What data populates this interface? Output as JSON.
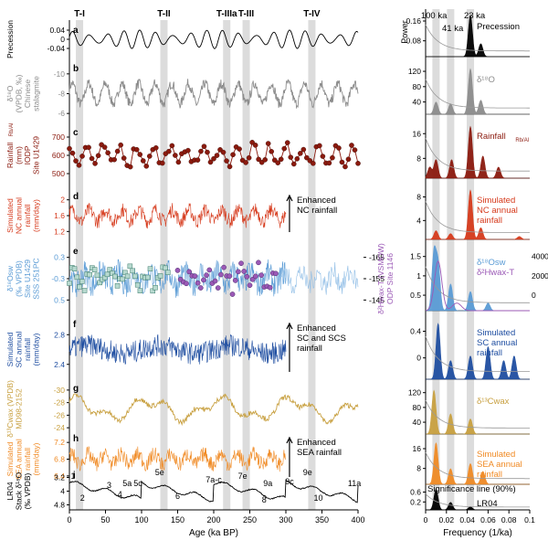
{
  "chart_data": {
    "type": "line",
    "left_figure": {
      "xlabel": "Age (ka BP)",
      "xlim": [
        0,
        400
      ],
      "xticks": [
        "0",
        "50",
        "100",
        "150",
        "200",
        "250",
        "300",
        "350",
        "400"
      ],
      "terminations": [
        {
          "label": "T-I",
          "age": 14
        },
        {
          "label": "T-II",
          "age": 131
        },
        {
          "label": "T-IIIa",
          "age": 218
        },
        {
          "label": "T-III",
          "age": 245
        },
        {
          "label": "T-IV",
          "age": 336
        }
      ],
      "panels": [
        {
          "letter": "a",
          "ylabel": [
            "Precession"
          ],
          "color": "#000000",
          "yticks": [
            "0.04",
            "0",
            "-0.04"
          ],
          "series": "precession"
        },
        {
          "letter": "b",
          "ylabel": [
            "δ¹⁸O",
            "(VPDB, ‰)",
            "Chinese",
            "stalagmite"
          ],
          "color": "#8c8c8c",
          "yticks": [
            "-10",
            "-8",
            "-6"
          ],
          "series": "stalagmite"
        },
        {
          "letter": "c",
          "ylabel": [
            "Rainfall",
            "(mm)",
            "IODP",
            "Site U1429"
          ],
          "ylabel_sub": "Rb/Al",
          "color": "#8b1a0e",
          "yticks": [
            "700",
            "600",
            "500"
          ],
          "series": "rainfall_ka",
          "markers": true
        },
        {
          "letter": "d",
          "ylabel": [
            "Simulated",
            "NC annual",
            "rainfall",
            "(mm/day)"
          ],
          "color": "#d63a1c",
          "yticks": [
            "2",
            "1.6",
            "1.2"
          ],
          "annotation": [
            "Enhanced",
            "NC rainfall"
          ],
          "series": "nc_rainfall"
        },
        {
          "letter": "e",
          "ylabel": [
            "δ¹⁸Osw",
            "(‰ VPDB)",
            "Site U1429",
            "SSS 251PC"
          ],
          "color": "#5a9bd5",
          "yticks": [
            "0.3",
            "-0.3",
            "0.5"
          ],
          "right_yticks": [
            "-165",
            "-155",
            "-145"
          ],
          "right_ylabel": [
            "δ²Hwax-T (VSMOW)",
            "ODP Site 1146"
          ],
          "right_color": "#9b59b6",
          "series": "d18osw"
        },
        {
          "letter": "f",
          "ylabel": [
            "Simulated",
            "SC annual",
            "rainfall",
            "(mm/day)"
          ],
          "color": "#1f4ea1",
          "yticks": [
            "2.8",
            "2.4"
          ],
          "annotation": [
            "Enhanced",
            "SC and SCS",
            "rainfall"
          ],
          "series": "sc_rainfall"
        },
        {
          "letter": "g",
          "ylabel": [
            "δ¹³Cwax (VPDB)",
            "MD98-2152"
          ],
          "color": "#c8a040",
          "yticks": [
            "-30",
            "-28",
            "-26",
            "-24"
          ],
          "series": "d13cwax"
        },
        {
          "letter": "h",
          "ylabel": [
            "Simulated",
            "SEA annual",
            "rainfall",
            "(mm/day)"
          ],
          "color": "#f08a24",
          "yticks": [
            "7.2",
            "6.8",
            "6.4"
          ],
          "annotation": [
            "Enhanced",
            "SEA rainfall"
          ],
          "series": "sea_rainfall"
        },
        {
          "letter": "i",
          "ylabel": [
            "LR04",
            "Stack δ¹⁸O",
            "(‰ VPDB)"
          ],
          "color": "#000000",
          "yticks": [
            "3.2",
            "4",
            "4.8"
          ],
          "series": "lr04"
        }
      ],
      "lr04_stages": [
        "1",
        "2",
        "3",
        "4",
        "5a",
        "5c",
        "5e",
        "6",
        "7a-c",
        "7e",
        "8",
        "9a",
        "9c",
        "9e",
        "10",
        "11a"
      ]
    },
    "right_figure": {
      "xlabel": "Frequency (1/ka)",
      "xlim": [
        0,
        0.1
      ],
      "xticks": [
        "0",
        "0.02",
        "0.04",
        "0.06",
        "0.08",
        "0.1"
      ],
      "ylabel_top": "Power",
      "period_labels": [
        "100 ka",
        "41 ka",
        "23 ka"
      ],
      "significance_label": "Significance line (90%)",
      "panels": [
        {
          "name": "Precession",
          "color": "#000000",
          "yticks": [
            "0.16",
            "0.08"
          ],
          "peaks": [
            [
              0.043,
              0.16
            ],
            [
              0.053,
              0.05
            ]
          ]
        },
        {
          "name": "δ¹⁸O",
          "color": "#8c8c8c",
          "yticks": [
            "120",
            "80",
            "40"
          ],
          "peaks": [
            [
              0.01,
              35
            ],
            [
              0.024,
              30
            ],
            [
              0.043,
              130
            ],
            [
              0.053,
              40
            ]
          ]
        },
        {
          "name": "Rainfall",
          "name_sub": "Rb/Al",
          "color": "#8b1a0e",
          "yticks": [
            "16",
            "8"
          ],
          "peaks": [
            [
              0.004,
              3
            ],
            [
              0.01,
              5
            ],
            [
              0.025,
              5
            ],
            [
              0.043,
              14
            ],
            [
              0.055,
              6
            ],
            [
              0.07,
              3
            ]
          ]
        },
        {
          "name": "Simulated NC annual rainfall",
          "color": "#d63a1c",
          "yticks": [
            "8",
            "4"
          ],
          "peaks": [
            [
              0.01,
              1.5
            ],
            [
              0.024,
              1.0
            ],
            [
              0.043,
              8.5
            ],
            [
              0.053,
              2.0
            ],
            [
              0.09,
              0.5
            ]
          ]
        },
        {
          "name": "δ¹⁸Osw",
          "name2": "δ²Hwax-T",
          "color": "#5a9bd5",
          "color2": "#9b59b6",
          "yticks": [
            "1.5",
            "1",
            "0.5"
          ],
          "right_yticks": [
            "4000",
            "2000",
            "0"
          ],
          "peaks": [
            [
              0.008,
              1.5
            ],
            [
              0.012,
              1.2
            ],
            [
              0.024,
              0.7
            ],
            [
              0.043,
              0.5
            ],
            [
              0.06,
              0.2
            ]
          ]
        },
        {
          "name": "Simulated SC annual rainfall",
          "color": "#1f4ea1",
          "yticks": [
            "0.4",
            "0"
          ],
          "peaks": [
            [
              0.012,
              0.6
            ],
            [
              0.024,
              0.2
            ],
            [
              0.043,
              0.25
            ],
            [
              0.06,
              0.35
            ],
            [
              0.075,
              0.2
            ],
            [
              0.085,
              0.25
            ]
          ]
        },
        {
          "name": "δ¹³Cwax",
          "color": "#c8a040",
          "yticks": [
            "120",
            "80",
            "40"
          ],
          "peaks": [
            [
              0.008,
              130
            ],
            [
              0.024,
              60
            ],
            [
              0.043,
              45
            ]
          ]
        },
        {
          "name": "Simulated SEA annual rainfall",
          "color": "#f08a24",
          "yticks": [
            "16",
            "8"
          ],
          "peaks": [
            [
              0.01,
              16
            ],
            [
              0.024,
              6
            ],
            [
              0.043,
              8
            ],
            [
              0.055,
              5
            ]
          ]
        },
        {
          "name": "LR04",
          "color": "#000000",
          "yticks": [
            "0.6",
            "0.2"
          ],
          "peaks": [
            [
              0.01,
              0.55
            ],
            [
              0.024,
              0.2
            ],
            [
              0.043,
              0.08
            ]
          ]
        }
      ]
    }
  }
}
